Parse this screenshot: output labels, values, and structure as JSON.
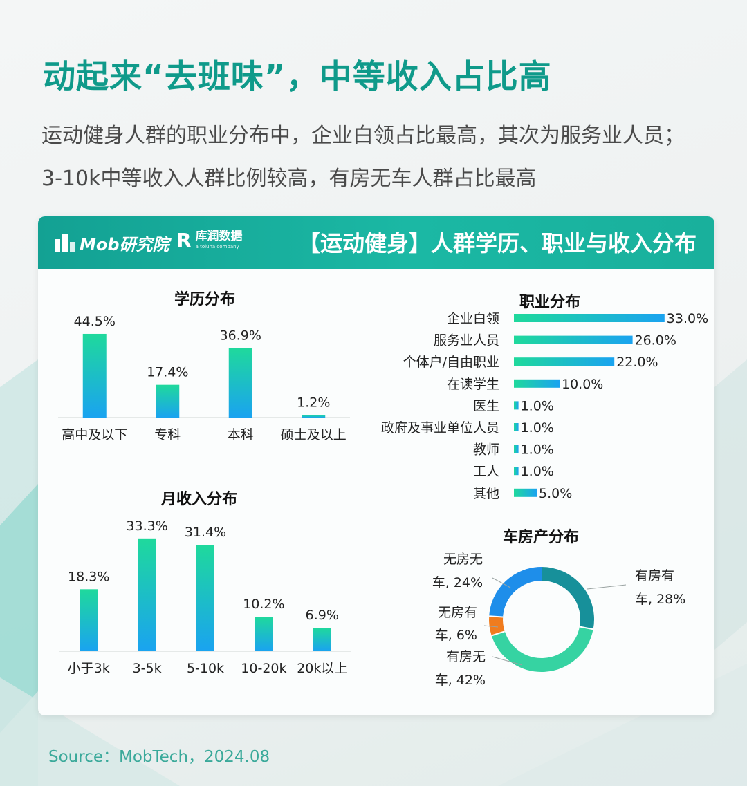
{
  "headline": "动起来“去班味”，中等收入占比高",
  "subtitle_lines": [
    "运动健身人群的职业分布中，企业白领占比最高，其次为服务业人员；",
    "3-10k中等收入人群比例较高，有房无车人群占比最高"
  ],
  "card": {
    "title": "【运动健身】人群学历、职业与收入分布",
    "logo_mob": "Mob研究院",
    "logo_kr_mark": "R",
    "logo_kr_name": "库润数据",
    "logo_kr_tag": "a toluna company"
  },
  "source": "Source：MobTech，2024.08",
  "colors": {
    "accent": "#0f9a8a",
    "header": "#19b09c",
    "bar_top": "#1fd99c",
    "bar_bottom": "#1aa3f0",
    "donut": [
      "#17909a",
      "#36d3a2",
      "#f07c1e",
      "#1e8eea"
    ]
  },
  "chart_data": [
    {
      "type": "bar",
      "title": "学历分布",
      "categories": [
        "高中及以下",
        "专科",
        "本科",
        "硕士及以上"
      ],
      "values": [
        44.5,
        17.4,
        36.9,
        1.2
      ],
      "labels": [
        "44.5%",
        "17.4%",
        "36.9%",
        "1.2%"
      ],
      "unit": "%"
    },
    {
      "type": "bar",
      "title": "月收入分布",
      "categories": [
        "小于3k",
        "3-5k",
        "5-10k",
        "10-20k",
        "20k以上"
      ],
      "values": [
        18.3,
        33.3,
        31.4,
        10.2,
        6.9
      ],
      "labels": [
        "18.3%",
        "33.3%",
        "31.4%",
        "10.2%",
        "6.9%"
      ],
      "unit": "%"
    },
    {
      "type": "bar",
      "orientation": "horizontal",
      "title": "职业分布",
      "categories": [
        "企业白领",
        "服务业人员",
        "个体户/自由职业",
        "在读学生",
        "医生",
        "政府及事业单位人员",
        "教师",
        "工人",
        "其他"
      ],
      "values": [
        33.0,
        26.0,
        22.0,
        10.0,
        1.0,
        1.0,
        1.0,
        1.0,
        5.0
      ],
      "labels": [
        "33.0%",
        "26.0%",
        "22.0%",
        "10.0%",
        "1.0%",
        "1.0%",
        "1.0%",
        "1.0%",
        "5.0%"
      ],
      "unit": "%"
    },
    {
      "type": "pie",
      "style": "donut",
      "title": "车房产分布",
      "slices": [
        {
          "label_lines": [
            "有房有",
            "车, 28%"
          ],
          "value": 28
        },
        {
          "label_lines": [
            "有房无",
            "车, 42%"
          ],
          "value": 42
        },
        {
          "label_lines": [
            "无房有",
            "车, 6%"
          ],
          "value": 6
        },
        {
          "label_lines": [
            "无房无",
            "车, 24%"
          ],
          "value": 24
        }
      ]
    }
  ]
}
